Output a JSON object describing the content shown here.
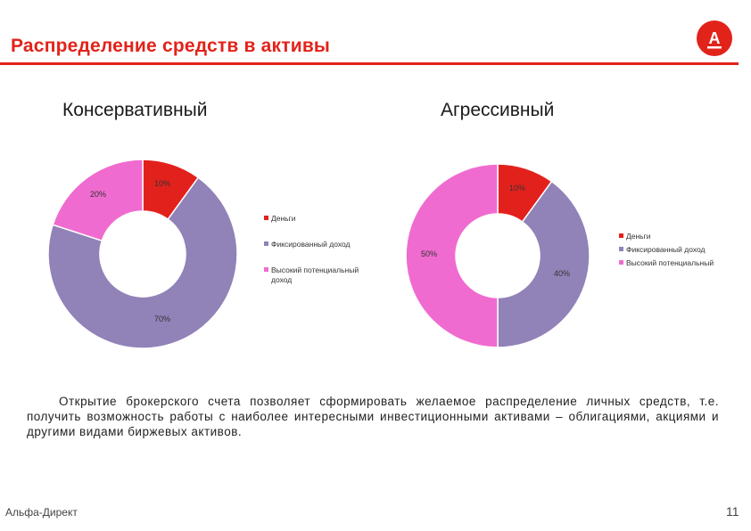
{
  "slide": {
    "title": "Распределение средств в активы",
    "body_text": "Открытие брокерского счета позволяет сформировать желаемое распределение личных средств, т.е. получить возможность работы с наиболее интересными инвестиционными активами – облигациями, акциями и другими видами биржевых активов.",
    "footer_left": "Альфа-Директ",
    "page_number": "11",
    "logo_letter": "А"
  },
  "colors": {
    "brand_red": "#e2231a",
    "money": "#e3211c",
    "fixed_income": "#9182b8",
    "high_potential": "#f06bcf"
  },
  "chart_data": [
    {
      "type": "pie",
      "title": "Консервативный",
      "categories": [
        "Деньги",
        "Фиксированный доход",
        "Высокий потенциальный доход"
      ],
      "values": [
        10,
        70,
        20
      ],
      "data_labels": [
        "10%",
        "70%",
        "20%"
      ],
      "legend": {
        "placement": "right",
        "entries": [
          "Деньги",
          "Фиксированный доход",
          "Высокий потенциальный доход"
        ]
      }
    },
    {
      "type": "pie",
      "title": "Агрессивный",
      "categories": [
        "Деньги",
        "Фиксированный доход",
        "Высокий потенциальный"
      ],
      "values": [
        10,
        40,
        50
      ],
      "data_labels": [
        "10%",
        "40%",
        "50%"
      ],
      "legend": {
        "placement": "right",
        "entries": [
          "Деньги",
          "Фиксированный доход",
          "Высокий потенциальный"
        ]
      }
    }
  ]
}
